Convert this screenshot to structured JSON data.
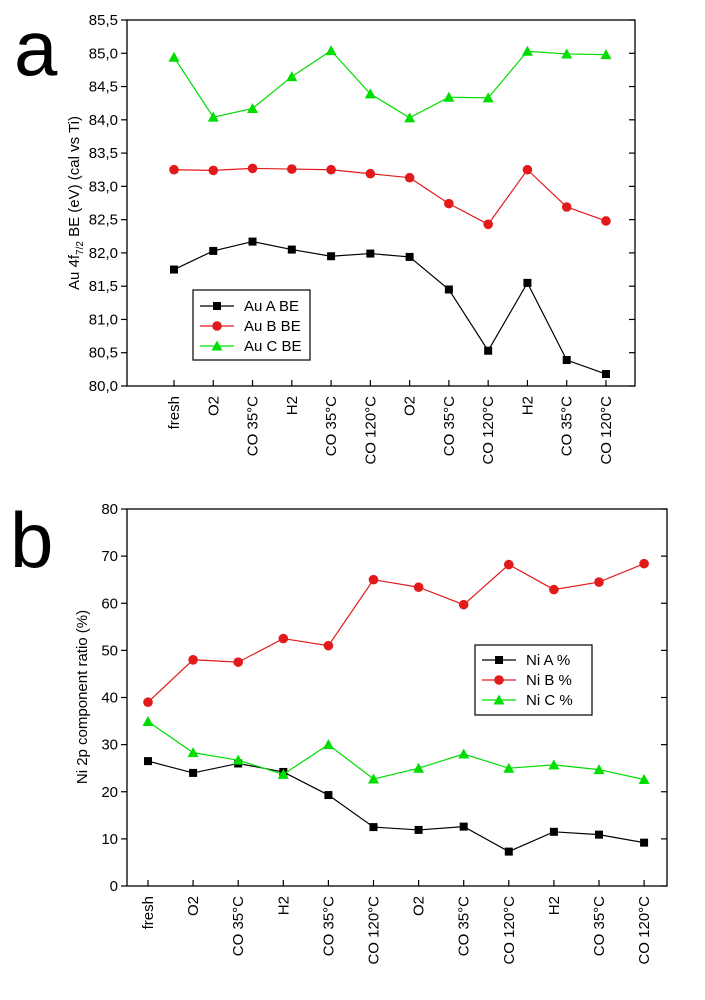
{
  "colors": {
    "A": "#000000",
    "B": "#e31a1c",
    "C": "#00dd00"
  },
  "chart_data": [
    {
      "panel_label": "a",
      "type": "line",
      "ylabel": "Au 4f",
      "ylabel_sub": "7/2",
      "ylabel_rest": " BE (eV) (cal vs Ti)",
      "ylim": [
        80.0,
        85.5
      ],
      "yticks": [
        "80,0",
        "80,5",
        "81,0",
        "81,5",
        "82,0",
        "82,5",
        "83,0",
        "83,5",
        "84,0",
        "84,5",
        "85,0",
        "85,5"
      ],
      "categories": [
        "fresh",
        "O2",
        "CO 35°C",
        "H2",
        "CO 35°C",
        "CO 120°C",
        "O2",
        "CO 35°C",
        "CO 120°C",
        "H2",
        "CO 35°C",
        "CO 120°C"
      ],
      "legend_position": "bottom-left",
      "series": [
        {
          "name": "Au A BE",
          "marker": "square",
          "values": [
            81.75,
            82.03,
            82.17,
            82.05,
            81.95,
            81.99,
            81.94,
            81.45,
            80.53,
            81.55,
            80.39,
            80.18
          ]
        },
        {
          "name": "Au B BE",
          "marker": "circle",
          "values": [
            83.25,
            83.24,
            83.27,
            83.26,
            83.25,
            83.19,
            83.13,
            82.74,
            82.43,
            83.25,
            82.69,
            82.48
          ]
        },
        {
          "name": "Au C BE",
          "marker": "triangle",
          "values": [
            84.94,
            84.04,
            84.17,
            84.65,
            85.04,
            84.39,
            84.03,
            84.34,
            84.33,
            85.03,
            84.99,
            84.98
          ]
        }
      ]
    },
    {
      "panel_label": "b",
      "type": "line",
      "ylabel": "Ni 2p component ratio     (%)",
      "ylim": [
        0,
        80
      ],
      "yticks": [
        "0",
        "10",
        "20",
        "30",
        "40",
        "50",
        "60",
        "70",
        "80"
      ],
      "categories": [
        "fresh",
        "O2",
        "CO 35°C",
        "H2",
        "CO 35°C",
        "CO 120°C",
        "O2",
        "CO 35°C",
        "CO 120°C",
        "H2",
        "CO 35°C",
        "CO 120°C"
      ],
      "legend_position": "center-right",
      "series": [
        {
          "name": "Ni A %",
          "marker": "square",
          "values": [
            26.5,
            24.0,
            26.0,
            24.2,
            19.3,
            12.5,
            11.9,
            12.6,
            7.3,
            11.5,
            10.9,
            9.2
          ]
        },
        {
          "name": "Ni B %",
          "marker": "circle",
          "values": [
            39.0,
            48.0,
            47.5,
            52.5,
            51.0,
            65.0,
            63.4,
            59.7,
            68.2,
            62.9,
            64.5,
            68.4
          ]
        },
        {
          "name": "Ni C %",
          "marker": "triangle",
          "values": [
            34.9,
            28.3,
            26.7,
            23.7,
            30.0,
            22.7,
            25.0,
            28.0,
            25.0,
            25.7,
            24.7,
            22.6
          ]
        }
      ]
    }
  ]
}
